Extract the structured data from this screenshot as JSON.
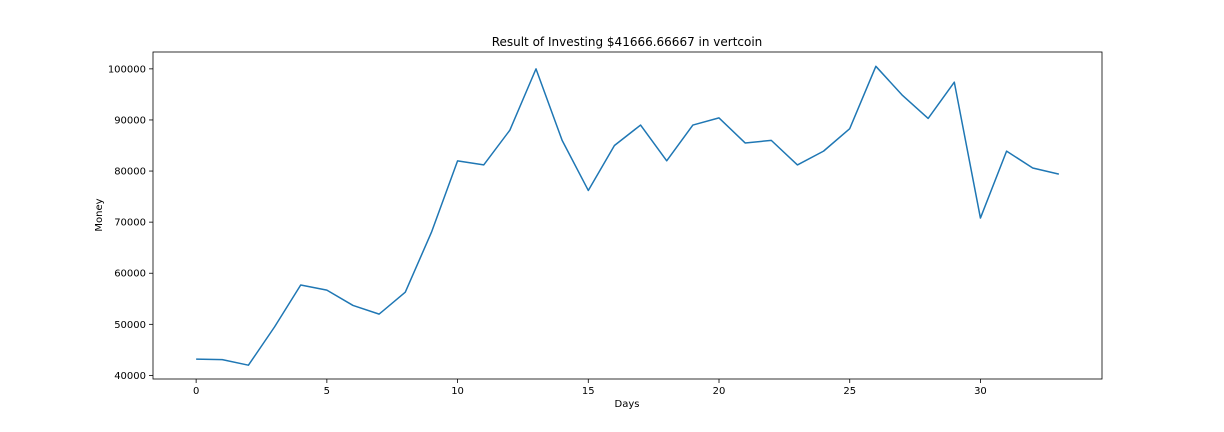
{
  "chart_data": {
    "type": "line",
    "title": "Result of Investing $41666.66667 in vertcoin",
    "xlabel": "Days",
    "ylabel": "Money",
    "xlim": [
      -1.65,
      34.65
    ],
    "ylim": [
      39300,
      103300
    ],
    "x_ticks": [
      0,
      5,
      10,
      15,
      20,
      25,
      30
    ],
    "y_ticks": [
      40000,
      50000,
      60000,
      70000,
      80000,
      90000,
      100000
    ],
    "grid": false,
    "line_color": "#1f77b4",
    "series": [
      {
        "x": [
          0,
          1,
          2,
          3,
          4,
          5,
          6,
          7,
          8,
          9,
          10,
          11,
          12,
          13,
          14,
          15,
          16,
          17,
          18,
          19,
          20,
          21,
          22,
          23,
          24,
          25,
          26,
          27,
          28,
          29,
          30,
          31,
          32,
          33
        ],
        "values": [
          43200,
          43100,
          42000,
          49500,
          57700,
          56700,
          53700,
          52000,
          56300,
          68000,
          82000,
          81200,
          88000,
          100000,
          86000,
          76200,
          85000,
          89000,
          82000,
          89000,
          90400,
          85500,
          86000,
          81200,
          83900,
          88300,
          100500,
          94900,
          90300,
          97400,
          70800,
          83900,
          80600,
          79400
        ]
      }
    ]
  }
}
